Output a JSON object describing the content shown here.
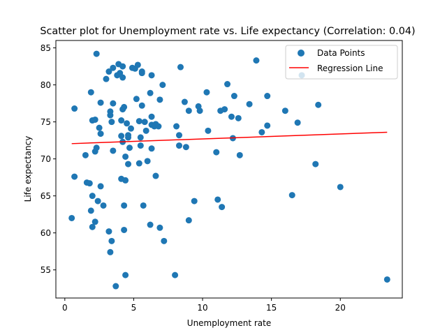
{
  "chart_data": {
    "type": "scatter",
    "title": "Scatter plot for Unemployment rate vs. Life expectancy (Correlation: 0.04)",
    "xlabel": "Unemployment rate",
    "ylabel": "Life expectancy",
    "xlim": [
      -0.65,
      24.5
    ],
    "ylim": [
      51.2,
      86.0
    ],
    "xticks": [
      0,
      5,
      10,
      15,
      20
    ],
    "yticks": [
      55,
      60,
      65,
      70,
      75,
      80,
      85
    ],
    "grid": false,
    "legend_position": "top-right",
    "point_color": "#1f77b4",
    "line_color": "#ff0000",
    "series": [
      {
        "name": "Data Points",
        "points": [
          [
            0.5,
            62.0
          ],
          [
            0.7,
            76.8
          ],
          [
            0.7,
            67.6
          ],
          [
            1.5,
            70.5
          ],
          [
            1.6,
            66.8
          ],
          [
            1.8,
            66.7
          ],
          [
            1.9,
            63.0
          ],
          [
            1.9,
            79.0
          ],
          [
            2.0,
            65.0
          ],
          [
            2.0,
            60.8
          ],
          [
            2.0,
            75.2
          ],
          [
            2.2,
            75.3
          ],
          [
            2.2,
            71.0
          ],
          [
            2.2,
            61.5
          ],
          [
            2.3,
            84.2
          ],
          [
            2.3,
            71.5
          ],
          [
            2.4,
            64.3
          ],
          [
            2.5,
            74.2
          ],
          [
            2.6,
            66.3
          ],
          [
            2.6,
            73.4
          ],
          [
            2.6,
            77.6
          ],
          [
            2.8,
            63.7
          ],
          [
            3.0,
            80.8
          ],
          [
            3.2,
            81.8
          ],
          [
            3.2,
            60.2
          ],
          [
            3.3,
            76.4
          ],
          [
            3.3,
            75.9
          ],
          [
            3.3,
            57.4
          ],
          [
            3.4,
            58.9
          ],
          [
            3.4,
            75.0
          ],
          [
            3.5,
            82.3
          ],
          [
            3.5,
            71.1
          ],
          [
            3.5,
            77.5
          ],
          [
            3.7,
            52.8
          ],
          [
            3.8,
            81.3
          ],
          [
            3.9,
            82.8
          ],
          [
            4.0,
            81.6
          ],
          [
            4.1,
            73.1
          ],
          [
            4.1,
            75.2
          ],
          [
            4.1,
            67.3
          ],
          [
            4.2,
            82.5
          ],
          [
            4.2,
            76.7
          ],
          [
            4.2,
            72.3
          ],
          [
            4.2,
            81.0
          ],
          [
            4.3,
            77.0
          ],
          [
            4.3,
            63.7
          ],
          [
            4.3,
            60.4
          ],
          [
            4.4,
            54.3
          ],
          [
            4.4,
            70.3
          ],
          [
            4.4,
            67.1
          ],
          [
            4.5,
            74.8
          ],
          [
            4.6,
            69.3
          ],
          [
            4.6,
            72.9
          ],
          [
            4.6,
            73.2
          ],
          [
            4.7,
            71.5
          ],
          [
            4.8,
            74.1
          ],
          [
            4.9,
            82.3
          ],
          [
            5.1,
            82.2
          ],
          [
            5.2,
            78.1
          ],
          [
            5.3,
            82.7
          ],
          [
            5.4,
            75.1
          ],
          [
            5.4,
            69.4
          ],
          [
            5.5,
            71.8
          ],
          [
            5.5,
            72.9
          ],
          [
            5.6,
            81.8
          ],
          [
            5.6,
            81.6
          ],
          [
            5.6,
            77.2
          ],
          [
            5.7,
            63.7
          ],
          [
            5.8,
            75.0
          ],
          [
            5.9,
            73.8
          ],
          [
            6.0,
            69.7
          ],
          [
            6.2,
            61.1
          ],
          [
            6.2,
            78.9
          ],
          [
            6.3,
            75.7
          ],
          [
            6.3,
            74.6
          ],
          [
            6.3,
            71.4
          ],
          [
            6.3,
            81.3
          ],
          [
            6.5,
            74.4
          ],
          [
            6.6,
            67.7
          ],
          [
            6.6,
            74.7
          ],
          [
            6.8,
            74.4
          ],
          [
            6.9,
            60.7
          ],
          [
            6.9,
            78.0
          ],
          [
            7.1,
            80.0
          ],
          [
            7.2,
            58.9
          ],
          [
            8.0,
            54.3
          ],
          [
            8.1,
            74.4
          ],
          [
            8.3,
            73.2
          ],
          [
            8.3,
            71.8
          ],
          [
            8.4,
            82.4
          ],
          [
            8.7,
            77.7
          ],
          [
            8.8,
            71.6
          ],
          [
            9.0,
            61.7
          ],
          [
            9.0,
            76.5
          ],
          [
            9.4,
            64.3
          ],
          [
            9.7,
            77.1
          ],
          [
            9.8,
            76.5
          ],
          [
            10.3,
            79.0
          ],
          [
            10.4,
            73.8
          ],
          [
            11.0,
            70.9
          ],
          [
            11.1,
            64.5
          ],
          [
            11.3,
            76.5
          ],
          [
            11.4,
            63.5
          ],
          [
            11.6,
            76.7
          ],
          [
            11.8,
            80.1
          ],
          [
            12.1,
            75.7
          ],
          [
            12.2,
            72.8
          ],
          [
            12.3,
            78.5
          ],
          [
            12.6,
            75.5
          ],
          [
            12.7,
            70.5
          ],
          [
            13.4,
            77.4
          ],
          [
            13.9,
            83.3
          ],
          [
            14.3,
            73.6
          ],
          [
            14.7,
            78.5
          ],
          [
            14.7,
            74.5
          ],
          [
            16.0,
            76.5
          ],
          [
            16.5,
            65.1
          ],
          [
            16.9,
            74.9
          ],
          [
            17.2,
            81.3
          ],
          [
            18.2,
            69.3
          ],
          [
            18.4,
            77.3
          ],
          [
            20.0,
            66.2
          ],
          [
            23.4,
            53.7
          ]
        ]
      },
      {
        "name": "Regression Line",
        "points": [
          [
            0.5,
            72.06
          ],
          [
            23.4,
            73.6
          ]
        ]
      }
    ]
  }
}
